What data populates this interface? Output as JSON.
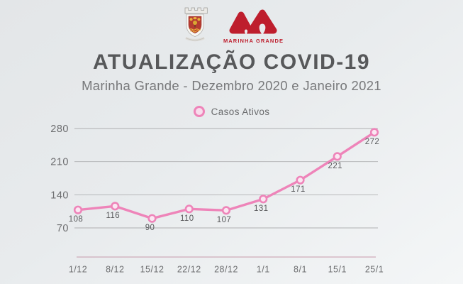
{
  "header": {
    "title": "ATUALIZAÇÃO COVID-19",
    "subtitle": "Marinha Grande - Dezembro 2020 e Janeiro 2021",
    "logo_wordmark": "MARINHA GRANDE",
    "logo_red": "#be1e2d"
  },
  "legend": {
    "label": "Casos Ativos",
    "marker_color": "#ee84b9"
  },
  "chart_data": {
    "type": "line",
    "title": "Casos Ativos",
    "series_name": "Casos Ativos",
    "categories": [
      "1/12",
      "8/12",
      "15/12",
      "22/12",
      "28/12",
      "1/1",
      "8/1",
      "15/1",
      "25/1"
    ],
    "values": [
      108,
      116,
      90,
      110,
      107,
      131,
      171,
      221,
      272
    ],
    "yticks": [
      70,
      140,
      210,
      280
    ],
    "ylim": [
      70,
      280
    ],
    "grid": true,
    "legend_position": "top",
    "line_color": "#ee84b9",
    "marker_fill": "#fbe7f2",
    "grid_color": "#a5a5a7",
    "axis_line_color": "#c79aab",
    "tick_color": "#6d6e70",
    "label_color": "#58595b"
  }
}
